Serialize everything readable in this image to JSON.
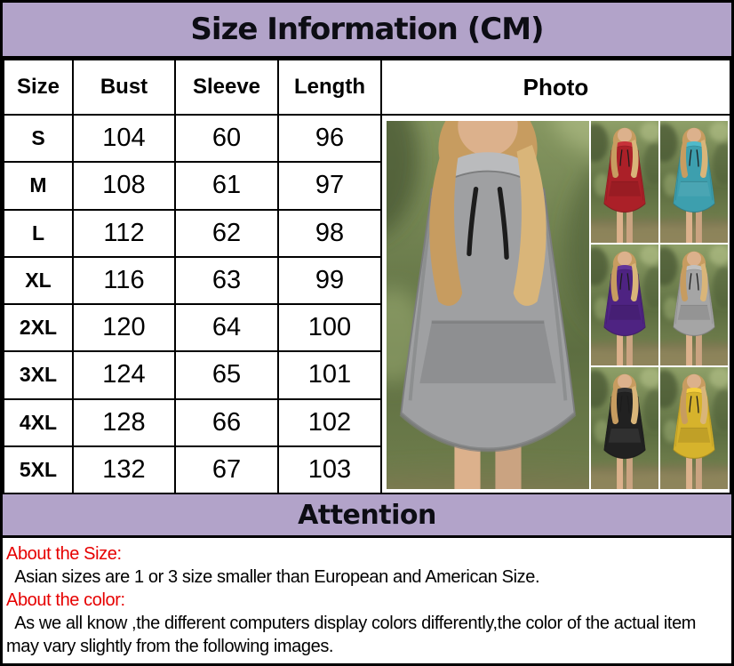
{
  "title": "Size Information (CM)",
  "size_table": {
    "headers": [
      "Size",
      "Bust",
      "Sleeve",
      "Length",
      "Photo"
    ],
    "rows": [
      {
        "size": "S",
        "bust": "104",
        "sleeve": "60",
        "length": "96"
      },
      {
        "size": "M",
        "bust": "108",
        "sleeve": "61",
        "length": "97"
      },
      {
        "size": "L",
        "bust": "112",
        "sleeve": "62",
        "length": "98"
      },
      {
        "size": "XL",
        "bust": "116",
        "sleeve": "63",
        "length": "99"
      },
      {
        "size": "2XL",
        "bust": "120",
        "sleeve": "64",
        "length": "100"
      },
      {
        "size": "3XL",
        "bust": "124",
        "sleeve": "65",
        "length": "101"
      },
      {
        "size": "4XL",
        "bust": "128",
        "sleeve": "66",
        "length": "102"
      },
      {
        "size": "5XL",
        "bust": "132",
        "sleeve": "67",
        "length": "103"
      }
    ],
    "unit": "CM"
  },
  "photos": {
    "main": {
      "name": "gray-hoodie-dress-model-closeup",
      "color": "#9fa0a2"
    },
    "grid": [
      {
        "name": "red-hoodie-dress-model",
        "color": "#ab2028"
      },
      {
        "name": "teal-hoodie-dress-model",
        "color": "#3d9fae"
      },
      {
        "name": "purple-hoodie-dress-model",
        "color": "#4e2382"
      },
      {
        "name": "gray-hoodie-dress-model",
        "color": "#a5a5a5"
      },
      {
        "name": "black-hoodie-dress-model",
        "color": "#212121"
      },
      {
        "name": "yellow-hoodie-dress-model",
        "color": "#d6b32c"
      }
    ],
    "palette": {
      "skin": "#dcb18c",
      "hair": "#c79c60",
      "hair_light": "#d9b579",
      "background_green_light": "#93a46b",
      "background_green_dark": "#5d6e41",
      "ground": "#8f845c",
      "drawstring": "#1c1c1c"
    }
  },
  "attention": {
    "title": "Attention",
    "sections": [
      {
        "heading": "About the Size:",
        "lines": [
          "  Asian sizes are 1 or 3 size smaller than European and American Size."
        ]
      },
      {
        "heading": "About the color:",
        "lines": [
          "  As we all know ,the different computers display colors differently,the color of the actual item",
          "may vary slightly from the following images."
        ]
      }
    ]
  },
  "colors": {
    "band_purple": "#b2a3c9",
    "heading_red": "#e60000",
    "border_black": "#000000",
    "text_black": "#000000",
    "background_white": "#ffffff"
  }
}
